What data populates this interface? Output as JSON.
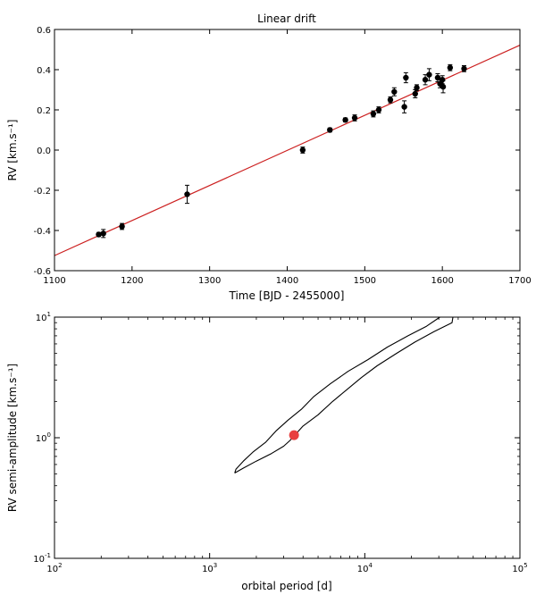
{
  "chart_data": [
    {
      "type": "scatter",
      "title": "Linear drift",
      "xlabel": "Time [BJD - 2455000]",
      "ylabel": "RV [km.s⁻¹]",
      "xlim": [
        1100,
        1700
      ],
      "ylim": [
        -0.6,
        0.6
      ],
      "xticks": [
        1100,
        1200,
        1300,
        1400,
        1500,
        1600,
        1700
      ],
      "xtick_labels": [
        "1100",
        "1200",
        "1300",
        "1400",
        "1500",
        "1600",
        "1700"
      ],
      "yticks": [
        0.6,
        0.4,
        0.2,
        0.0,
        -0.2,
        -0.4,
        -0.6
      ],
      "ytick_labels": [
        "0.6",
        "0.4",
        "0.2",
        "0.0",
        "-0.2",
        "-0.4",
        "-0.6"
      ],
      "grid": false,
      "fit_line": {
        "color": "#cc2020",
        "points": [
          [
            1100,
            -0.525
          ],
          [
            1700,
            0.522
          ]
        ]
      },
      "points": [
        {
          "x": 1157,
          "y": -0.42,
          "err": 0.01
        },
        {
          "x": 1163,
          "y": -0.415,
          "err": 0.02
        },
        {
          "x": 1187,
          "y": -0.38,
          "err": 0.015
        },
        {
          "x": 1271,
          "y": -0.22,
          "err": 0.045
        },
        {
          "x": 1420,
          "y": 0.0,
          "err": 0.015
        },
        {
          "x": 1455,
          "y": 0.1,
          "err": 0.01
        },
        {
          "x": 1475,
          "y": 0.15,
          "err": 0.01
        },
        {
          "x": 1487,
          "y": 0.16,
          "err": 0.015
        },
        {
          "x": 1511,
          "y": 0.18,
          "err": 0.015
        },
        {
          "x": 1518,
          "y": 0.2,
          "err": 0.015
        },
        {
          "x": 1533,
          "y": 0.25,
          "err": 0.015
        },
        {
          "x": 1538,
          "y": 0.29,
          "err": 0.02
        },
        {
          "x": 1551,
          "y": 0.215,
          "err": 0.03
        },
        {
          "x": 1553,
          "y": 0.36,
          "err": 0.025
        },
        {
          "x": 1565,
          "y": 0.28,
          "err": 0.02
        },
        {
          "x": 1567,
          "y": 0.31,
          "err": 0.015
        },
        {
          "x": 1578,
          "y": 0.35,
          "err": 0.025
        },
        {
          "x": 1583,
          "y": 0.375,
          "err": 0.03
        },
        {
          "x": 1594,
          "y": 0.36,
          "err": 0.02
        },
        {
          "x": 1597,
          "y": 0.33,
          "err": 0.02
        },
        {
          "x": 1600,
          "y": 0.35,
          "err": 0.02
        },
        {
          "x": 1601,
          "y": 0.315,
          "err": 0.03
        },
        {
          "x": 1610,
          "y": 0.41,
          "err": 0.015
        },
        {
          "x": 1628,
          "y": 0.405,
          "err": 0.015
        }
      ]
    },
    {
      "type": "line",
      "title": "",
      "xlabel": "orbital period [d]",
      "ylabel": "RV semi-amplitude [km.s⁻¹]",
      "xscale": "log",
      "yscale": "log",
      "xlim": [
        100,
        100000
      ],
      "ylim": [
        0.1,
        10
      ],
      "xtick_labels": [
        {
          "base": "10",
          "exp": "2",
          "value": 100
        },
        {
          "base": "10",
          "exp": "3",
          "value": 1000
        },
        {
          "base": "10",
          "exp": "4",
          "value": 10000
        },
        {
          "base": "10",
          "exp": "5",
          "value": 100000
        }
      ],
      "ytick_labels": [
        {
          "base": "10",
          "exp": "-1",
          "value": 0.1
        },
        {
          "base": "10",
          "exp": "0",
          "value": 1
        },
        {
          "base": "10",
          "exp": "1",
          "value": 10
        }
      ],
      "grid": false,
      "marker": {
        "x": 3500,
        "y": 1.05,
        "color": "#e84040"
      },
      "contour": [
        [
          1450,
          0.51
        ],
        [
          1650,
          0.56
        ],
        [
          2000,
          0.64
        ],
        [
          2500,
          0.74
        ],
        [
          3000,
          0.85
        ],
        [
          3300,
          0.95
        ],
        [
          4000,
          1.25
        ],
        [
          5000,
          1.55
        ],
        [
          6200,
          2.0
        ],
        [
          7800,
          2.55
        ],
        [
          9500,
          3.15
        ],
        [
          12000,
          3.95
        ],
        [
          16000,
          5.0
        ],
        [
          21000,
          6.2
        ],
        [
          28000,
          7.6
        ],
        [
          36500,
          9.0
        ],
        [
          37000,
          10.0
        ],
        [
          30500,
          10.0
        ],
        [
          25000,
          8.4
        ],
        [
          19000,
          7.0
        ],
        [
          14000,
          5.65
        ],
        [
          10500,
          4.45
        ],
        [
          7800,
          3.55
        ],
        [
          6000,
          2.8
        ],
        [
          4700,
          2.2
        ],
        [
          3900,
          1.72
        ],
        [
          3200,
          1.4
        ],
        [
          2700,
          1.15
        ],
        [
          2300,
          0.92
        ],
        [
          1900,
          0.76
        ],
        [
          1650,
          0.64
        ],
        [
          1480,
          0.55
        ],
        [
          1450,
          0.51
        ]
      ]
    }
  ]
}
